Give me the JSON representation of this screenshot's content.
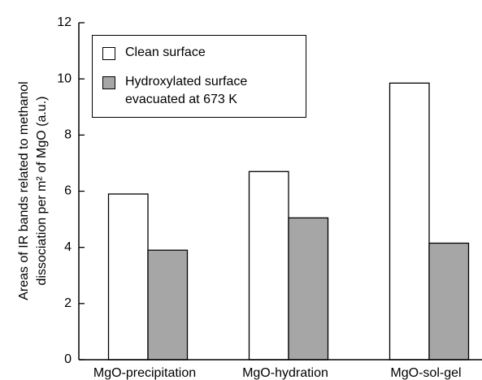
{
  "chart_data": {
    "type": "bar",
    "y_label": [
      "Areas of IR bands related to methanol",
      "dissociation per m² of MgO (a.u.)"
    ],
    "categories": [
      "MgO-precipitation",
      "MgO-hydration",
      "MgO-sol-gel"
    ],
    "series": [
      {
        "name": "Clean surface",
        "color": "#ffffff",
        "values": [
          5.9,
          6.7,
          9.85
        ]
      },
      {
        "name": "Hydroxylated surface evacuated at 673 K",
        "color": "#a6a6a6",
        "values": [
          3.9,
          5.05,
          4.15
        ]
      }
    ],
    "ylim": [
      0,
      12
    ],
    "yticks": [
      0,
      2,
      4,
      6,
      8,
      10,
      12
    ],
    "legend": "upper left"
  }
}
